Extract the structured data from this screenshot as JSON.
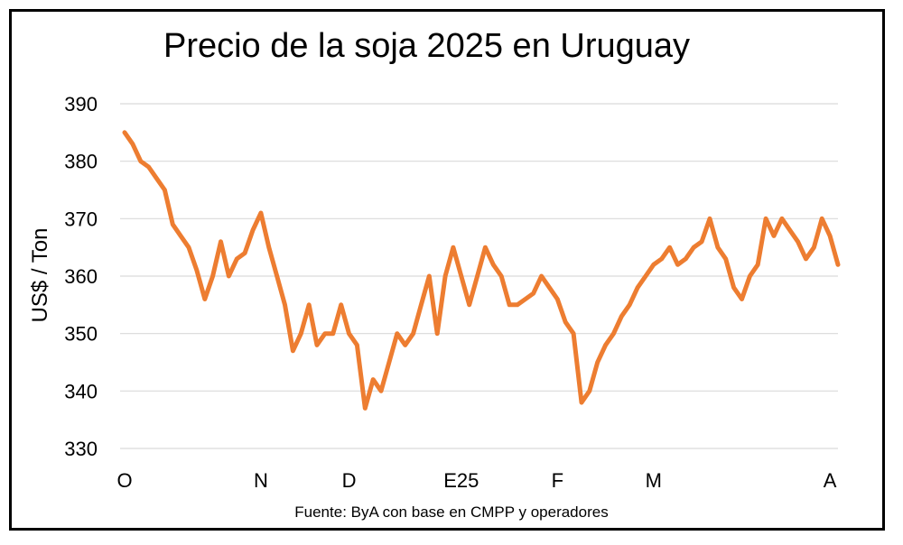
{
  "chart_data": {
    "type": "line",
    "title": "Precio de la soja 2025 en Uruguay",
    "ylabel": "US$ / Ton",
    "xlabel": "",
    "source": "Fuente: ByA con base en CMPP y operadores",
    "ylim": [
      330,
      390
    ],
    "yticks": [
      330,
      340,
      350,
      360,
      370,
      380,
      390
    ],
    "grid": true,
    "x_tick_labels": [
      {
        "label": "O",
        "index": 0
      },
      {
        "label": "N",
        "index": 17
      },
      {
        "label": "D",
        "index": 28
      },
      {
        "label": "E25",
        "index": 42
      },
      {
        "label": "F",
        "index": 54
      },
      {
        "label": "M",
        "index": 66
      },
      {
        "label": "A",
        "index": 88
      }
    ],
    "line_color": "#ED7D31",
    "series": [
      {
        "values": [
          385,
          383,
          380,
          379,
          377,
          375,
          369,
          367,
          365,
          361,
          356,
          360,
          366,
          360,
          363,
          364,
          368,
          371,
          365,
          360,
          355,
          347,
          350,
          355,
          348,
          350,
          350,
          355,
          350,
          348,
          337,
          342,
          340,
          345,
          350,
          348,
          350,
          355,
          360,
          350,
          360,
          365,
          360,
          355,
          360,
          365,
          362,
          360,
          355,
          355,
          356,
          357,
          360,
          358,
          356,
          352,
          350,
          338,
          340,
          345,
          348,
          350,
          353,
          355,
          358,
          360,
          362,
          363,
          365,
          362,
          363,
          365,
          366,
          370,
          365,
          363,
          358,
          356,
          360,
          362,
          370,
          367,
          370,
          368,
          366,
          363,
          365,
          370,
          367,
          362
        ]
      }
    ]
  }
}
